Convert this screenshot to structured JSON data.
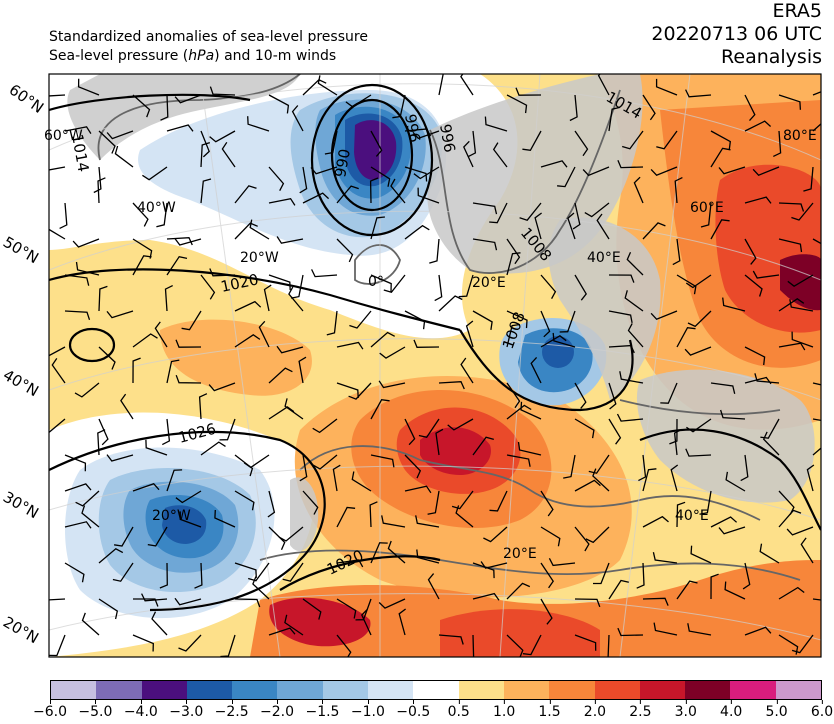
{
  "header": {
    "line1": "Standardized anomalies of sea-level pressure",
    "line2_pre": "Sea-level pressure (",
    "line2_unit": "hPa",
    "line2_post": ") and 10-m winds",
    "dataset": "ERA5",
    "datetime": "20220713 06 UTC",
    "product": "Reanalysis"
  },
  "latitude_labels": [
    "60°N",
    "50°N",
    "40°N",
    "30°N",
    "20°N"
  ],
  "gridline_labels": [
    "60°W",
    "40°W",
    "20°W",
    "0°",
    "20°E",
    "40°E",
    "60°E",
    "80°E",
    "20°W",
    "20°E",
    "40°E"
  ],
  "isobar_labels": [
    "1014",
    "996",
    "990",
    "996",
    "1014",
    "1008",
    "1020",
    "1008",
    "1026",
    "1020"
  ],
  "colorbar": {
    "ticks": [
      "−6.0",
      "−5.0",
      "−4.0",
      "−3.0",
      "−2.5",
      "−2.0",
      "−1.5",
      "−1.0",
      "−0.5",
      "0.5",
      "1.0",
      "1.5",
      "2.0",
      "2.5",
      "3.0",
      "4.0",
      "5.0",
      "6.0"
    ],
    "colors": [
      "#c6bfe0",
      "#7d6cb6",
      "#4b0f7e",
      "#1d5aa6",
      "#3a86c4",
      "#6fa7d6",
      "#a4c8e6",
      "#d4e4f4",
      "#ffffff",
      "#fde08a",
      "#fdb25c",
      "#f7863a",
      "#ea4a2a",
      "#c7162a",
      "#7d0026",
      "#d91d7d",
      "#cc99cc"
    ]
  },
  "colors": {
    "land_mask": "#c8c8c8",
    "coast": "#666666",
    "isobar": "#000000",
    "grid": "#d0d0d0"
  }
}
